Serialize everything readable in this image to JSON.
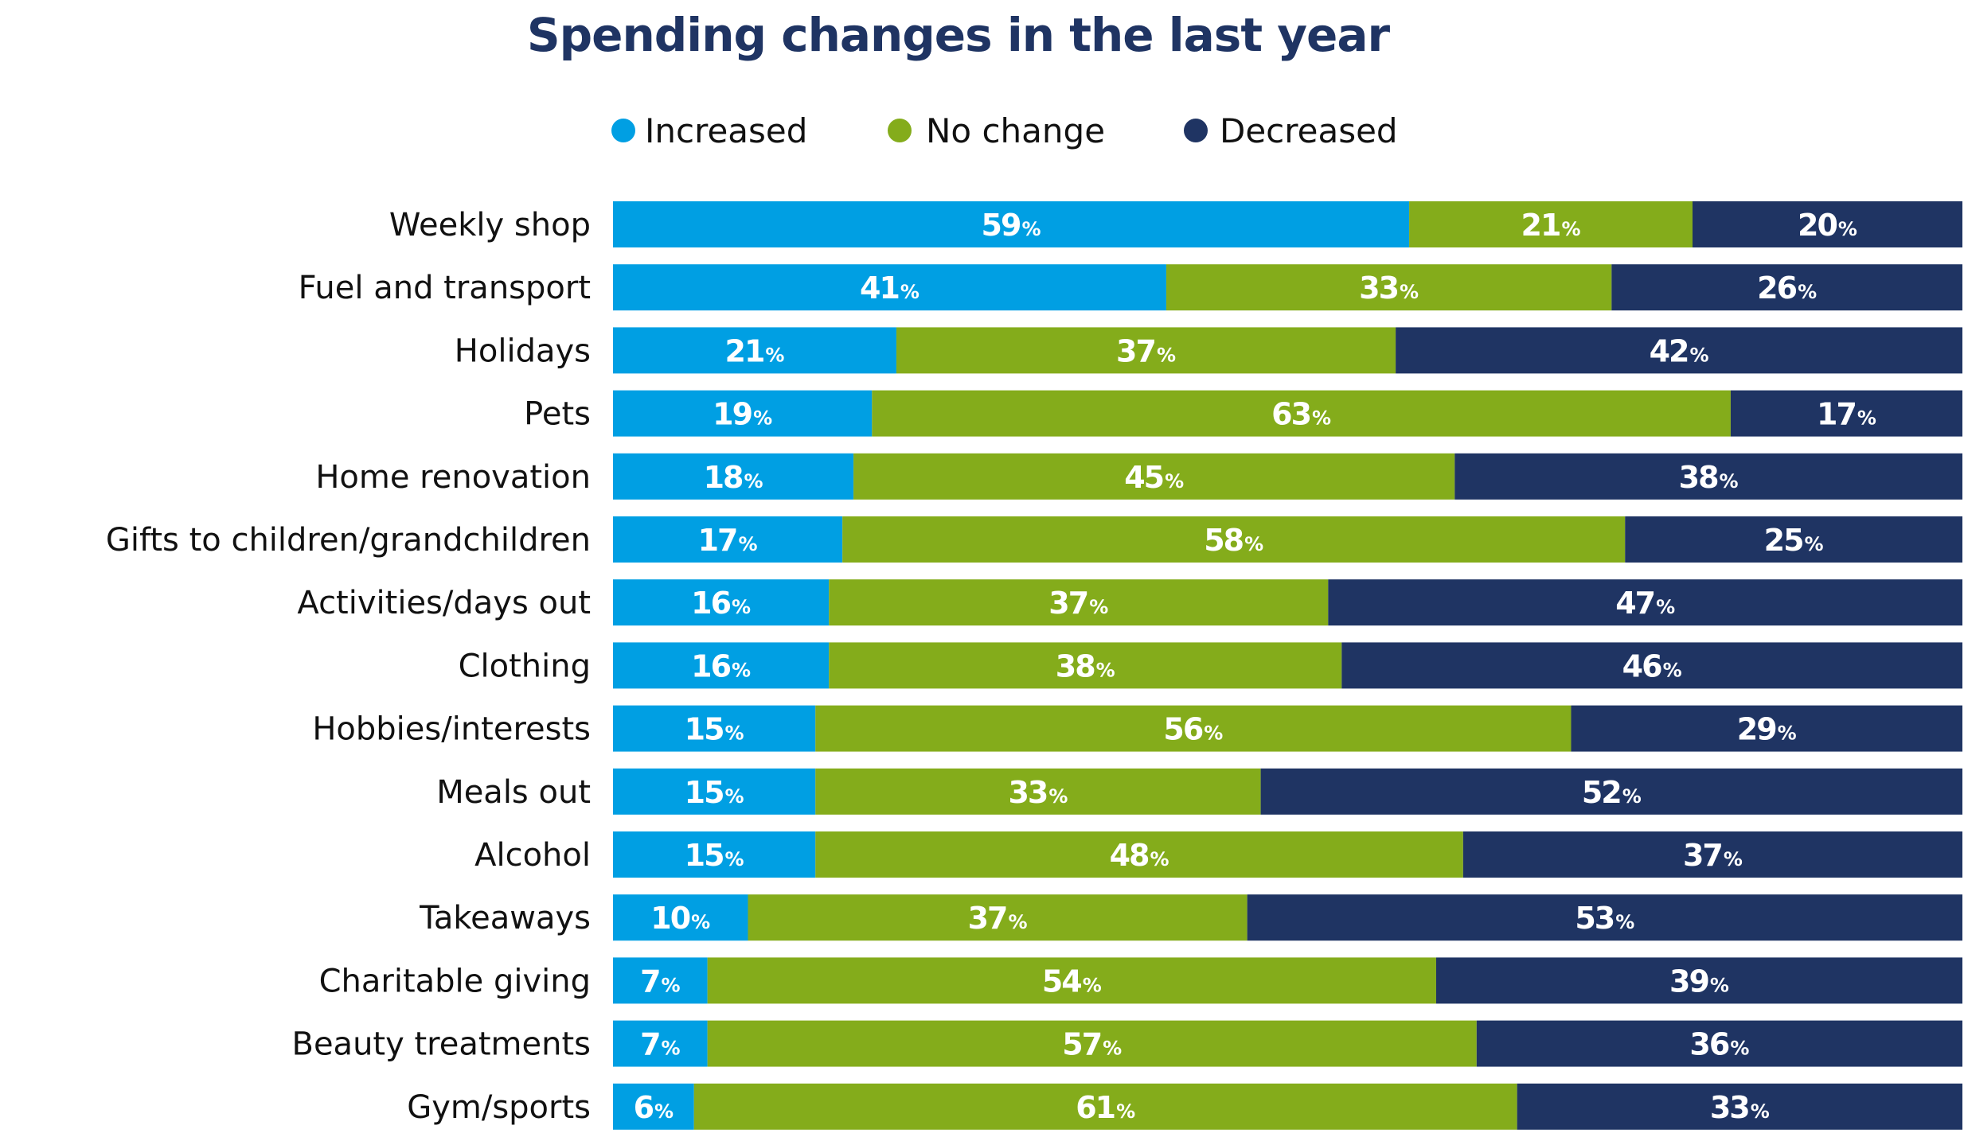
{
  "chart_data": {
    "type": "bar",
    "orientation": "horizontal",
    "stacked": true,
    "title": "Spending changes in the last year",
    "unit_suffix": "%",
    "legend_position": "top",
    "categories": [
      "Weekly shop",
      "Fuel and transport",
      "Holidays",
      "Pets",
      "Home renovation",
      "Gifts to children/grandchildren",
      "Activities/days out",
      "Clothing",
      "Hobbies/interests",
      "Meals out",
      "Alcohol",
      "Takeaways",
      "Charitable giving",
      "Beauty treatments",
      "Gym/sports"
    ],
    "series": [
      {
        "name": "Increased",
        "color": "#009fe3",
        "values": [
          59,
          41,
          21,
          19,
          18,
          17,
          16,
          16,
          15,
          15,
          15,
          10,
          7,
          7,
          6
        ]
      },
      {
        "name": "No change",
        "color": "#84ac1b",
        "values": [
          21,
          33,
          37,
          63,
          45,
          58,
          37,
          38,
          56,
          33,
          48,
          37,
          54,
          57,
          61
        ]
      },
      {
        "name": "Decreased",
        "color": "#1f3463",
        "values": [
          20,
          26,
          42,
          17,
          38,
          25,
          47,
          46,
          29,
          52,
          37,
          53,
          39,
          36,
          33
        ]
      }
    ]
  }
}
